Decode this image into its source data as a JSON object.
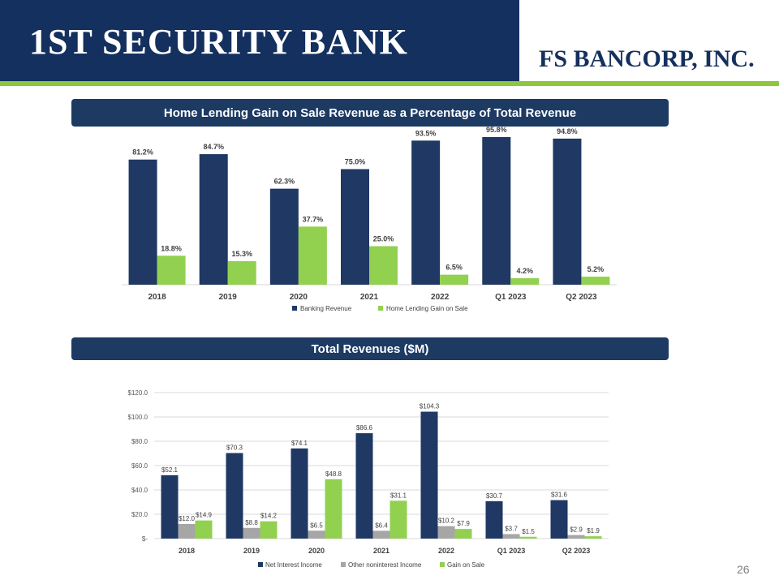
{
  "header": {
    "left_logo": "1ST SECURITY BANK",
    "right_logo": "FS BANCORP, INC.",
    "colors": {
      "navy": "#14305e",
      "green": "#8dc63f"
    }
  },
  "page_number": "26",
  "chart_data": [
    {
      "type": "bar",
      "title": "Home Lending Gain on Sale Revenue as a Percentage of Total Revenue",
      "categories": [
        "2018",
        "2019",
        "2020",
        "2021",
        "2022",
        "Q1 2023",
        "Q2 2023"
      ],
      "series": [
        {
          "name": "Banking Revenue",
          "color": "#1f3864",
          "values": [
            81.2,
            84.7,
            62.3,
            75.0,
            93.5,
            95.8,
            94.8
          ],
          "labels": [
            "81.2%",
            "84.7%",
            "62.3%",
            "75.0%",
            "93.5%",
            "95.8%",
            "94.8%"
          ]
        },
        {
          "name": "Home Lending Gain on Sale",
          "color": "#92d050",
          "values": [
            18.8,
            15.3,
            37.7,
            25.0,
            6.5,
            4.2,
            5.2
          ],
          "labels": [
            "18.8%",
            "15.3%",
            "37.7%",
            "25.0%",
            "6.5%",
            "4.2%",
            "5.2%"
          ]
        }
      ],
      "ylim": [
        0,
        100
      ],
      "legend": "bottom"
    },
    {
      "type": "bar",
      "title": "Total Revenues ($M)",
      "categories": [
        "2018",
        "2019",
        "2020",
        "2021",
        "2022",
        "Q1 2023",
        "Q2 2023"
      ],
      "series": [
        {
          "name": "Net Interest Income",
          "color": "#1f3864",
          "values": [
            52.1,
            70.3,
            74.1,
            86.6,
            104.3,
            30.7,
            31.6
          ],
          "labels": [
            "$52.1",
            "$70.3",
            "$74.1",
            "$86.6",
            "$104.3",
            "$30.7",
            "$31.6"
          ]
        },
        {
          "name": "Other noninterest Income",
          "color": "#a6a6a6",
          "values": [
            12.0,
            8.8,
            6.5,
            6.4,
            10.2,
            3.7,
            2.9
          ],
          "labels": [
            "$12.0",
            "$8.8",
            "$6.5",
            "$6.4",
            "$10.2",
            "$3.7",
            "$2.9"
          ]
        },
        {
          "name": "Gain on Sale",
          "color": "#92d050",
          "values": [
            14.9,
            14.2,
            48.8,
            31.1,
            7.9,
            1.5,
            1.9
          ],
          "labels": [
            "$14.9",
            "$14.2",
            "$48.8",
            "$31.1",
            "$7.9",
            "$1.5",
            "$1.9"
          ]
        }
      ],
      "yticks": [
        0,
        20,
        40,
        60,
        80,
        100,
        120
      ],
      "ytick_labels": [
        "$-",
        "$20.0",
        "$40.0",
        "$60.0",
        "$80.0",
        "$100.0",
        "$120.0"
      ],
      "ylim": [
        0,
        120
      ],
      "grid": true,
      "legend": "bottom"
    }
  ]
}
